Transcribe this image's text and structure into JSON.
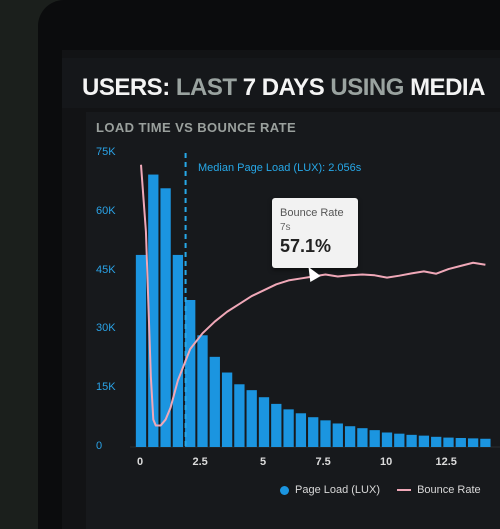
{
  "header": {
    "title_part1": "USERS:",
    "title_part2": "LAST",
    "title_part3": "7 DAYS",
    "title_part4": "USING",
    "title_part5": "MEDIA"
  },
  "tooltip": {
    "label": "Bounce Rate",
    "sub": "7s",
    "value": "57.1%"
  },
  "colors": {
    "bar": "#1b95e0",
    "line": "#f0a8b8",
    "axis_text": "#2aa2e6",
    "median": "#27a8e8"
  },
  "chart_data": {
    "type": "bar",
    "title": "LOAD TIME VS BOUNCE RATE",
    "ylim": [
      0,
      75000
    ],
    "xlim": [
      -0.5,
      14.5
    ],
    "y_ticks": [
      "0",
      "15K",
      "30K",
      "45K",
      "60K",
      "75K"
    ],
    "x_ticks": [
      "0",
      "2.5",
      "5",
      "7.5",
      "10",
      "12.5"
    ],
    "median_label": "Median Page Load (LUX): 2.056s",
    "median_x": 2.056,
    "legend": [
      "Page Load (LUX)",
      "Bounce Rate"
    ],
    "series": [
      {
        "name": "Page Load (LUX)",
        "type": "bar",
        "x": [
          0,
          0.5,
          1,
          1.5,
          2,
          2.5,
          3,
          3.5,
          4,
          4.5,
          5,
          5.5,
          6,
          6.5,
          7,
          7.5,
          8,
          8.5,
          9,
          9.5,
          10,
          10.5,
          11,
          11.5,
          12,
          12.5,
          13,
          13.5,
          14
        ],
        "values": [
          49000,
          69500,
          66000,
          49000,
          37500,
          28500,
          23000,
          19000,
          16000,
          14500,
          12700,
          11000,
          9600,
          8600,
          7600,
          6800,
          6000,
          5300,
          4800,
          4300,
          3700,
          3400,
          3100,
          2900,
          2600,
          2400,
          2300,
          2200,
          2100
        ]
      },
      {
        "name": "Bounce Rate",
        "type": "line",
        "x": [
          0,
          0.2,
          0.4,
          0.5,
          0.6,
          0.8,
          1,
          1.2,
          1.5,
          2,
          2.5,
          3,
          3.5,
          4,
          4.5,
          5,
          5.5,
          6,
          6.5,
          7,
          7.5,
          8,
          8.5,
          9,
          9.5,
          10,
          10.5,
          11,
          11.5,
          12,
          12.5,
          13,
          13.5,
          14
        ],
        "values": [
          72000,
          55000,
          18000,
          7000,
          5500,
          5500,
          7000,
          10000,
          17000,
          25000,
          29000,
          32000,
          34500,
          36500,
          38500,
          40000,
          41500,
          42500,
          43000,
          43500,
          44000,
          43500,
          43800,
          44000,
          43800,
          43200,
          43700,
          44300,
          44800,
          44200,
          45400,
          46200,
          47000,
          46500
        ]
      }
    ]
  }
}
